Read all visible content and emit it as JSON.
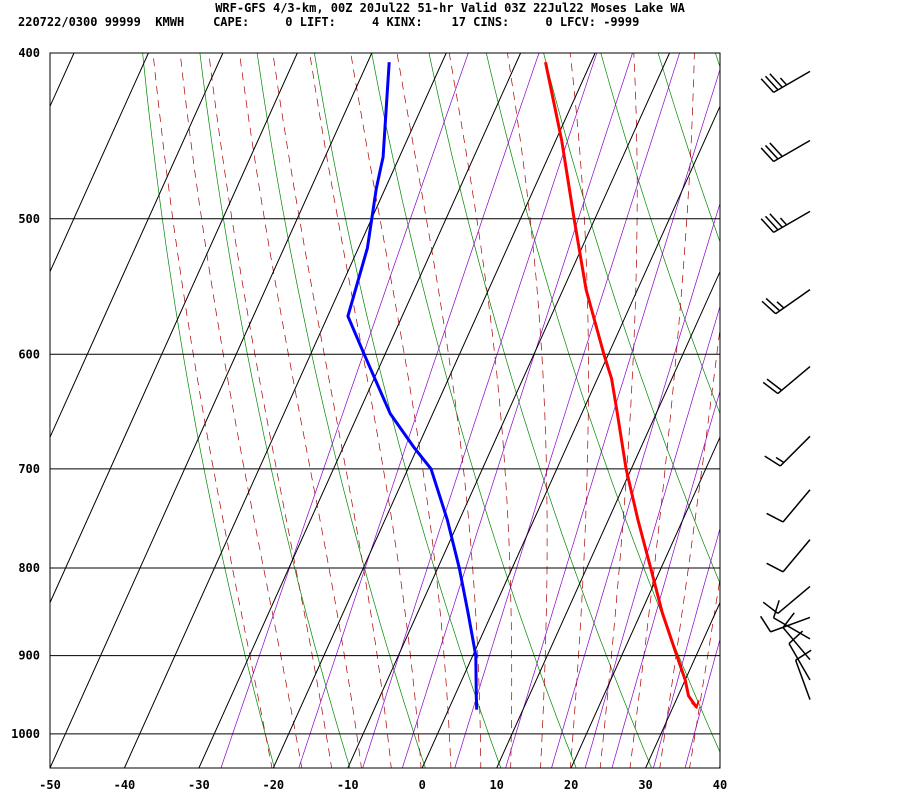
{
  "header": {
    "line1": "WRF-GFS 4/3-km, 00Z 20Jul22 51-hr Valid 03Z 22Jul22 Moses Lake WA",
    "line2": "220722/0300 99999  KMWH    CAPE:     0 LIFT:     4 KINX:    17 CINS:     0 LFCV: -9999"
  },
  "chart_data": {
    "type": "line",
    "title": "WRF-GFS 4/3-km, 00Z 20Jul22 51-hr Valid 03Z 22Jul22 Moses Lake WA",
    "xlabel": "",
    "ylabel": "",
    "xlim": [
      -50,
      40
    ],
    "ylim": [
      1050,
      400
    ],
    "y_scale": "log-pressure",
    "x_ticks": [
      -50,
      -40,
      -30,
      -20,
      -10,
      0,
      10,
      20,
      30,
      40
    ],
    "y_ticks": [
      400,
      500,
      600,
      700,
      800,
      900,
      1000
    ],
    "grid": true,
    "skew": true,
    "colors": {
      "temperature": "#ff0000",
      "dewpoint": "#0000ff",
      "isotherm": "#000000",
      "dry_adiabat": "#008800",
      "moist_adiabat": "#aa0000",
      "mixing_ratio": "#8800cc"
    },
    "series": [
      {
        "key": "temperature",
        "color": "#ff0000",
        "points": [
          {
            "p": 965,
            "t": 33.2
          },
          {
            "p": 950,
            "t": 31.4
          },
          {
            "p": 930,
            "t": 30.0
          },
          {
            "p": 900,
            "t": 27.4
          },
          {
            "p": 850,
            "t": 22.9
          },
          {
            "p": 800,
            "t": 18.6
          },
          {
            "p": 750,
            "t": 14.0
          },
          {
            "p": 700,
            "t": 9.3
          },
          {
            "p": 650,
            "t": 4.8
          },
          {
            "p": 620,
            "t": 1.9
          },
          {
            "p": 600,
            "t": -0.6
          },
          {
            "p": 550,
            "t": -6.9
          },
          {
            "p": 500,
            "t": -12.8
          },
          {
            "p": 450,
            "t": -19.2
          },
          {
            "p": 405,
            "t": -26.1
          }
        ]
      },
      {
        "key": "dewpoint",
        "color": "#0000ff",
        "points": [
          {
            "p": 968,
            "t": 3.8
          },
          {
            "p": 950,
            "t": 2.9
          },
          {
            "p": 900,
            "t": 0.4
          },
          {
            "p": 850,
            "t": -3.2
          },
          {
            "p": 800,
            "t": -7.1
          },
          {
            "p": 750,
            "t": -11.6
          },
          {
            "p": 700,
            "t": -16.9
          },
          {
            "p": 680,
            "t": -20.5
          },
          {
            "p": 650,
            "t": -25.7
          },
          {
            "p": 600,
            "t": -32.8
          },
          {
            "p": 570,
            "t": -37.3
          },
          {
            "p": 520,
            "t": -38.8
          },
          {
            "p": 480,
            "t": -41.2
          },
          {
            "p": 460,
            "t": -42.2
          },
          {
            "p": 405,
            "t": -47.1
          }
        ]
      }
    ],
    "wind_barbs": [
      {
        "p": 410,
        "dir": 240,
        "spd": 35
      },
      {
        "p": 450,
        "dir": 240,
        "spd": 30
      },
      {
        "p": 495,
        "dir": 240,
        "spd": 35
      },
      {
        "p": 550,
        "dir": 235,
        "spd": 25
      },
      {
        "p": 610,
        "dir": 230,
        "spd": 20
      },
      {
        "p": 670,
        "dir": 225,
        "spd": 15
      },
      {
        "p": 720,
        "dir": 220,
        "spd": 10
      },
      {
        "p": 770,
        "dir": 220,
        "spd": 10
      },
      {
        "p": 820,
        "dir": 230,
        "spd": 10
      },
      {
        "p": 855,
        "dir": 250,
        "spd": 10
      },
      {
        "p": 880,
        "dir": 300,
        "spd": 10
      },
      {
        "p": 905,
        "dir": 320,
        "spd": 10
      },
      {
        "p": 930,
        "dir": 330,
        "spd": 10
      },
      {
        "p": 955,
        "dir": 340,
        "spd": 10
      }
    ]
  }
}
